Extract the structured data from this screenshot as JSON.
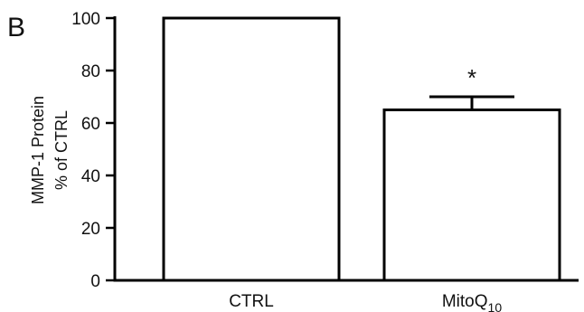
{
  "chart_data": {
    "type": "bar",
    "panel_label": "B",
    "categories": [
      "CTRL",
      "MitoQ"
    ],
    "category_subscripts": [
      "",
      "10"
    ],
    "values": [
      100,
      65
    ],
    "error_upper": [
      0,
      5
    ],
    "annotations": [
      "",
      "*"
    ],
    "ylabel_line1": "MMP-1 Protein",
    "ylabel_line2": "% of CTRL",
    "ylim": [
      0,
      100
    ],
    "yticks": [
      "0",
      "20",
      "40",
      "60",
      "80",
      "100"
    ],
    "grid": false,
    "bar_fill": "#ffffff",
    "bar_stroke": "#000000"
  }
}
